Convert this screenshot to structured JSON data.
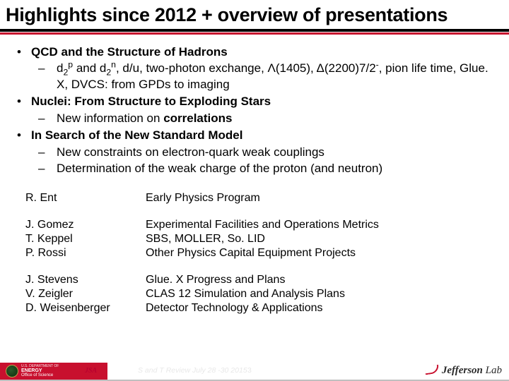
{
  "title": "Highlights since 2012 + overview of presentations",
  "colors": {
    "accent": "#c8102e",
    "text": "#000000",
    "bg": "#ffffff"
  },
  "bullets": [
    {
      "topic": "QCD and the Structure of Hadrons",
      "subs": [
        {
          "html": "d<sub>2</sub><sup>p</sup> and d<sub>2</sub><sup>n</sup>, d/u, two-photon exchange, Λ(1405), Δ(2200)7/2<sup>-</sup>, pion life time, Glue. X, DVCS: from GPDs to imaging"
        }
      ]
    },
    {
      "topic": "Nuclei: From Structure to Exploding Stars",
      "subs": [
        {
          "html": "New information on <b>correlations</b>"
        }
      ]
    },
    {
      "topic": "In Search of the New Standard Model",
      "subs": [
        {
          "html": "New constraints on electron-quark weak couplings"
        },
        {
          "html": "Determination of the weak charge of the proton (and neutron)"
        }
      ]
    }
  ],
  "table": [
    {
      "names": [
        "R. Ent"
      ],
      "topics": [
        "Early Physics Program"
      ]
    },
    {
      "names": [
        "J. Gomez",
        "T. Keppel",
        "P. Rossi"
      ],
      "topics": [
        "Experimental Facilities and Operations Metrics",
        "SBS, MOLLER, So. LID",
        "Other Physics Capital Equipment Projects"
      ]
    },
    {
      "names": [
        "J. Stevens",
        "V. Zeigler",
        "D. Weisenberger"
      ],
      "topics": [
        "Glue. X Progress and Plans",
        "CLAS 12 Simulation and Analysis Plans",
        "Detector Technology & Applications"
      ]
    }
  ],
  "footer": {
    "doe_line1": "U.S. DEPARTMENT OF",
    "doe_line2": "ENERGY",
    "doe_line3": "Office of Science",
    "jsa": "JSA",
    "text": "S and T Review July 28 -30 2015",
    "page": "3",
    "jlab_bold": "Jefferson",
    "jlab_rest": " Lab"
  }
}
